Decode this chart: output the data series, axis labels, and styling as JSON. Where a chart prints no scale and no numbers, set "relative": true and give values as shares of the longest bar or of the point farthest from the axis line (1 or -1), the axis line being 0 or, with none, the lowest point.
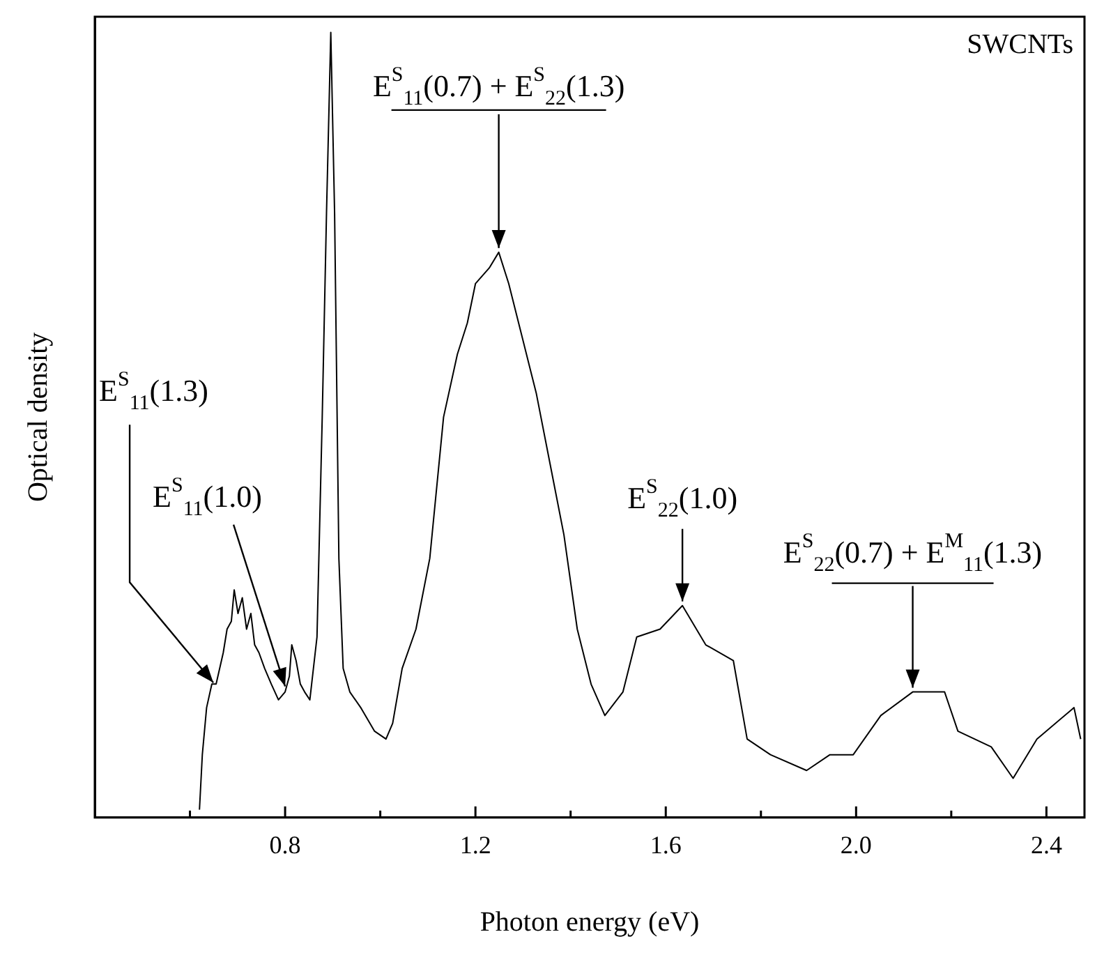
{
  "chart_data": {
    "type": "line",
    "xlabel": "Photon energy (eV)",
    "ylabel": "Optical density",
    "relative": true,
    "color": "#000000",
    "grid": false,
    "legend": false,
    "marker": "none",
    "line_style": "solid",
    "xlim": [
      0.4,
      2.48
    ],
    "xticks": [
      {
        "value": 0.6,
        "label": null
      },
      0.8,
      {
        "value": 1.0,
        "label": null
      },
      1.2,
      {
        "value": 1.4,
        "label": null
      },
      1.6,
      {
        "value": 1.8,
        "label": null
      },
      {
        "value": 2,
        "label": "2.0"
      },
      {
        "value": 2.2,
        "label": null
      },
      2.4
    ],
    "x": [
      0.62,
      0.626,
      0.635,
      0.646,
      0.655,
      0.67,
      0.678,
      0.687,
      0.693,
      0.701,
      0.71,
      0.719,
      0.728,
      0.736,
      0.745,
      0.757,
      0.771,
      0.786,
      0.8,
      0.809,
      0.814,
      0.823,
      0.832,
      0.841,
      0.852,
      0.867,
      0.878,
      0.887,
      0.896,
      0.904,
      0.913,
      0.922,
      0.936,
      0.959,
      0.988,
      1.012,
      1.026,
      1.046,
      1.075,
      1.104,
      1.133,
      1.162,
      1.183,
      1.2,
      1.229,
      1.249,
      1.27,
      1.299,
      1.328,
      1.357,
      1.386,
      1.414,
      1.443,
      1.472,
      1.51,
      1.539,
      1.588,
      1.635,
      1.684,
      1.742,
      1.771,
      1.82,
      1.896,
      1.945,
      1.994,
      2.052,
      2.119,
      2.186,
      2.214,
      2.284,
      2.33,
      2.38,
      2.458,
      2.472
    ],
    "values": [
      0.01,
      0.08,
      0.14,
      0.17,
      0.17,
      0.21,
      0.24,
      0.25,
      0.29,
      0.26,
      0.28,
      0.24,
      0.26,
      0.22,
      0.21,
      0.19,
      0.17,
      0.15,
      0.16,
      0.18,
      0.22,
      0.2,
      0.17,
      0.16,
      0.15,
      0.23,
      0.51,
      0.77,
      1.0,
      0.77,
      0.33,
      0.19,
      0.16,
      0.14,
      0.11,
      0.1,
      0.12,
      0.19,
      0.24,
      0.33,
      0.51,
      0.59,
      0.63,
      0.68,
      0.7,
      0.72,
      0.68,
      0.61,
      0.54,
      0.45,
      0.36,
      0.24,
      0.17,
      0.13,
      0.16,
      0.23,
      0.24,
      0.27,
      0.22,
      0.2,
      0.1,
      0.08,
      0.06,
      0.08,
      0.08,
      0.13,
      0.16,
      0.16,
      0.11,
      0.09,
      0.05,
      0.1,
      0.14,
      0.1
    ],
    "annotations": [
      {
        "text": "E$^{S}$$_{11}$(1.3)",
        "x": 0.655,
        "y": 0.17
      },
      {
        "text": "E$^{S}$$_{11}$(1.0)",
        "x": 0.8,
        "y": 0.16
      },
      {
        "text": "E$^{S}$$_{11}$(0.7) + E$^{S}$$_{22}$(1.3)",
        "x": 1.249,
        "y": 0.72
      },
      {
        "text": "E$^{S}$$_{22}$(1.0)",
        "x": 1.635,
        "y": 0.27
      },
      {
        "text": "E$^{S}$$_{22}$(0.7) + E$^{M}$$_{11}$(1.3)",
        "x": 2.119,
        "y": 0.16
      },
      "SWCNTs"
    ]
  }
}
